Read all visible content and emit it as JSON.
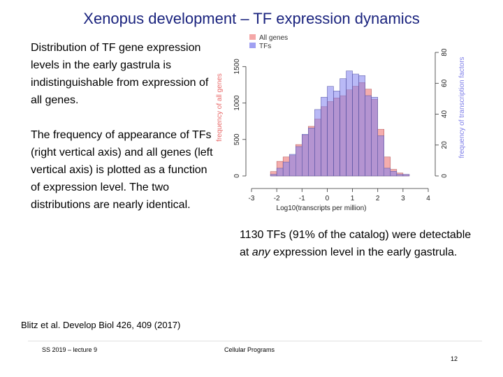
{
  "slide": {
    "title": "Xenopus development – TF expression dynamics",
    "para1": "Distribution of TF gene expression levels in the early gastrula is indistinguishable from expression of all genes.",
    "para2": "The frequency of appearance of TFs (right vertical axis) and all genes (left vertical axis) is plotted as a function of expression level. The two distributions are nearly identical.",
    "para3": {
      "before": "1130 TFs (91% of the catalog) were detectable at ",
      "emph": "any",
      "after": " expression level in the early gastrula."
    },
    "citation": "Blitz et al. Develop Biol 426, 409 (2017)",
    "footer_left": "SS 2019 – lecture 9",
    "footer_center": "Cellular Programs",
    "page_number": "12"
  },
  "chart_data": {
    "type": "bar",
    "xlabel": "Log10(transcripts per million)",
    "ylabel_left": "frequency of all genes",
    "ylabel_right": "frequency of transcription factors",
    "xlim": [
      -3,
      4
    ],
    "xticks": [
      -3,
      -2,
      -1,
      0,
      1,
      2,
      3,
      4
    ],
    "ylim_left": [
      0,
      1800
    ],
    "yticks_left": [
      0,
      500,
      1000,
      1500
    ],
    "ylim_right": [
      0,
      85
    ],
    "yticks_right": [
      0,
      20,
      40,
      60,
      80
    ],
    "bin_width": 0.25,
    "bin_starts": [
      -2.25,
      -2.0,
      -1.75,
      -1.5,
      -1.25,
      -1.0,
      -0.75,
      -0.5,
      -0.25,
      0.0,
      0.25,
      0.5,
      0.75,
      1.0,
      1.25,
      1.5,
      1.75,
      2.0,
      2.25,
      2.5,
      2.75,
      3.0
    ],
    "legend": [
      "All genes",
      "TFs"
    ],
    "legend_position": "top-left",
    "series": [
      {
        "name": "All genes",
        "axis": "left",
        "color": "#f08a8a",
        "values": [
          60,
          200,
          260,
          280,
          430,
          560,
          680,
          780,
          950,
          1020,
          1070,
          1100,
          1180,
          1230,
          1280,
          1190,
          1050,
          640,
          260,
          90,
          40,
          20
        ]
      },
      {
        "name": "TFs",
        "axis": "right",
        "color": "#8080ee",
        "values": [
          1,
          5,
          9,
          14,
          19,
          27,
          31,
          43,
          51,
          58,
          55,
          63,
          68,
          66,
          65,
          52,
          51,
          26,
          5,
          3,
          1,
          1
        ]
      }
    ]
  }
}
